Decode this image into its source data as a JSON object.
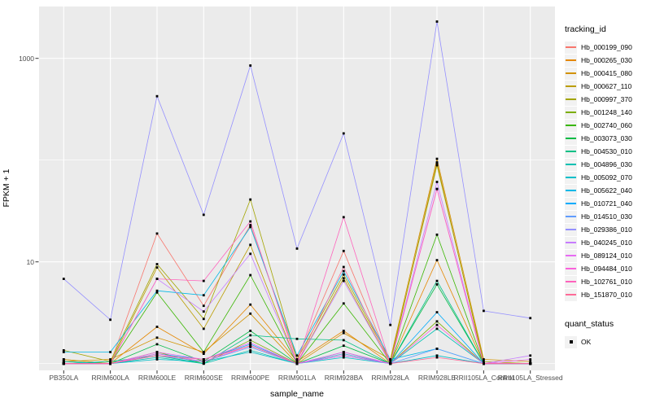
{
  "panel": {
    "bg": "#EBEBEB",
    "grid_color": "#FFFFFF",
    "tick_color": "#333333",
    "tick_label_color": "#4D4D4D",
    "point_color": "#000000"
  },
  "chart_data": {
    "type": "line",
    "title": "",
    "xlabel": "sample_name",
    "ylabel": "FPKM + 1",
    "y_scale": "log10",
    "y_ticks": [
      "10",
      "1000"
    ],
    "y_tick_values": [
      10,
      1000
    ],
    "y_minor_values": [
      1,
      100
    ],
    "ylim": [
      0.86,
      3200
    ],
    "grid": true,
    "legend_position": "right",
    "legend_title": "tracking_id",
    "point_legend": {
      "title": "quant_status",
      "label": "OK"
    },
    "categories": [
      "PB350LA",
      "RRIM600LA",
      "RRIM600LE",
      "RRIM600SE",
      "RRIM600PE",
      "RRIM901LA",
      "RRIM928BA",
      "RRIM928LA",
      "RRIM928LE",
      "RRII105LA_Control",
      "RRII105LA_Stressed"
    ],
    "series": [
      {
        "name": "Hb_000199_090",
        "color": "#F8766D",
        "values": [
          1.1,
          1.0,
          19,
          3.7,
          23,
          1.1,
          12.8,
          1.0,
          95,
          1.0,
          1.0
        ]
      },
      {
        "name": "Hb_000265_030",
        "color": "#E58700",
        "values": [
          1.0,
          1.0,
          2.3,
          1.25,
          3.8,
          1.05,
          2.1,
          1.0,
          10.4,
          1.0,
          1.0
        ]
      },
      {
        "name": "Hb_000415_080",
        "color": "#D29200",
        "values": [
          1.05,
          1.1,
          1.8,
          1.3,
          3.1,
          1.0,
          2.0,
          1.1,
          103,
          1.1,
          1.05
        ]
      },
      {
        "name": "Hb_000627_110",
        "color": "#BB9D00",
        "values": [
          1.1,
          1.0,
          8.8,
          2.2,
          14.7,
          1.0,
          6.9,
          1.0,
          94,
          1.0,
          1.0
        ]
      },
      {
        "name": "Hb_000997_370",
        "color": "#A3A500",
        "values": [
          1.35,
          1.05,
          9.5,
          2.75,
          41,
          1.1,
          7.5,
          1.05,
          89,
          1.05,
          1.0
        ]
      },
      {
        "name": "Hb_001248_140",
        "color": "#7CAE00",
        "values": [
          1.0,
          1.0,
          1.3,
          1.0,
          1.7,
          1.0,
          1.25,
          1.0,
          2.6,
          1.0,
          1.0
        ]
      },
      {
        "name": "Hb_002740_060",
        "color": "#39B600",
        "values": [
          1.05,
          1.0,
          5.0,
          1.3,
          7.4,
          1.0,
          3.9,
          1.0,
          18.5,
          1.0,
          1.0
        ]
      },
      {
        "name": "Hb_003073_030",
        "color": "#00BB45",
        "values": [
          1.0,
          1.0,
          1.55,
          1.05,
          2.1,
          1.0,
          1.5,
          1.0,
          6.0,
          1.0,
          1.0
        ]
      },
      {
        "name": "Hb_004530_010",
        "color": "#00C085",
        "values": [
          1.0,
          1.05,
          1.2,
          1.0,
          1.9,
          1.75,
          1.7,
          1.0,
          6.5,
          1.0,
          1.0
        ]
      },
      {
        "name": "Hb_004896_030",
        "color": "#00C0B2",
        "values": [
          1.0,
          1.0,
          1.15,
          1.0,
          1.35,
          1.0,
          1.2,
          1.0,
          2.2,
          1.0,
          1.0
        ]
      },
      {
        "name": "Hb_005092_070",
        "color": "#00BFC9",
        "values": [
          1.05,
          1.0,
          1.1,
          1.05,
          1.3,
          1.0,
          1.15,
          1.0,
          1.2,
          1.0,
          1.0
        ]
      },
      {
        "name": "Hb_005622_040",
        "color": "#00B8E7",
        "values": [
          1.3,
          1.3,
          5.2,
          4.7,
          22,
          1.2,
          8.1,
          1.1,
          1.4,
          1.0,
          1.0
        ]
      },
      {
        "name": "Hb_010721_040",
        "color": "#00ACFC",
        "values": [
          1.0,
          1.0,
          1.25,
          1.1,
          1.55,
          1.0,
          1.3,
          1.0,
          3.2,
          1.0,
          1.0
        ]
      },
      {
        "name": "Hb_014510_030",
        "color": "#619CFF",
        "values": [
          1.0,
          1.0,
          1.2,
          1.05,
          1.45,
          1.0,
          1.25,
          1.0,
          1.4,
          1.0,
          1.0
        ]
      },
      {
        "name": "Hb_029386_010",
        "color": "#9590FF",
        "values": [
          6.8,
          2.7,
          425,
          29,
          850,
          13.5,
          183,
          2.4,
          2300,
          3.3,
          2.8
        ]
      },
      {
        "name": "Hb_040245_010",
        "color": "#C77CFF",
        "values": [
          1.0,
          1.0,
          6.8,
          3.25,
          12,
          1.0,
          6.5,
          1.0,
          61,
          1.0,
          1.2
        ]
      },
      {
        "name": "Hb_089124_010",
        "color": "#E76BF3",
        "values": [
          1.0,
          1.0,
          1.3,
          1.1,
          1.6,
          1.0,
          1.2,
          1.0,
          52,
          1.0,
          1.1
        ]
      },
      {
        "name": "Hb_094484_010",
        "color": "#FA62DB",
        "values": [
          1.0,
          1.0,
          1.25,
          1.05,
          1.5,
          1.0,
          1.3,
          1.0,
          2.4,
          1.0,
          1.0
        ]
      },
      {
        "name": "Hb_102761_010",
        "color": "#FF62BC",
        "values": [
          1.0,
          1.0,
          6.8,
          6.5,
          25,
          1.0,
          27.5,
          1.0,
          52,
          1.0,
          1.0
        ]
      },
      {
        "name": "Hb_151870_010",
        "color": "#FF6A98",
        "values": [
          1.0,
          1.0,
          1.2,
          1.1,
          1.5,
          1.0,
          8.9,
          1.0,
          1.15,
          1.0,
          1.0
        ]
      }
    ]
  }
}
